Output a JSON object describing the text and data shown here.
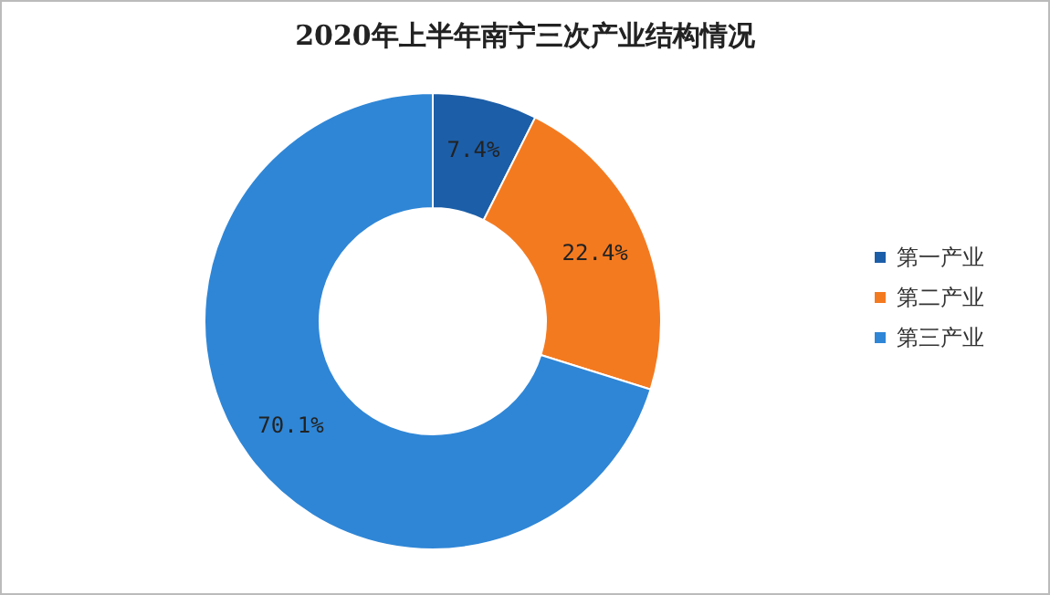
{
  "chart_data": {
    "type": "donut",
    "title": "2020年上半年南宁三次产业结构情况",
    "categories": [
      "第一产业",
      "第二产业",
      "第三产业"
    ],
    "values": [
      7.4,
      22.4,
      70.1
    ],
    "colors": [
      "#1c5ea8",
      "#f47a20",
      "#2f86d6"
    ],
    "value_labels": [
      "7.4%",
      "22.4%",
      "70.1%"
    ],
    "legend": "right"
  }
}
